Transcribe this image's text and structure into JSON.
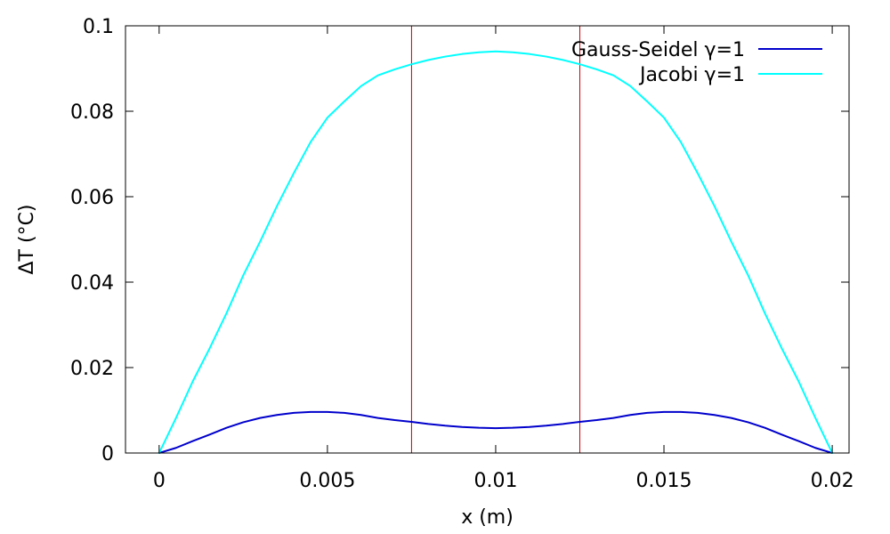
{
  "chart_data": {
    "type": "line",
    "xlabel": "x (m)",
    "ylabel": "ΔT (°C)",
    "xlim": [
      -0.001,
      0.0205
    ],
    "ylim": [
      0,
      0.1
    ],
    "x_ticks": [
      0,
      0.005,
      0.01,
      0.015,
      0.02
    ],
    "x_tick_labels": [
      "0",
      "0.005",
      "0.01",
      "0.015",
      "0.02"
    ],
    "y_ticks": [
      0,
      0.02,
      0.04,
      0.06,
      0.08,
      0.1
    ],
    "y_tick_labels": [
      "0",
      "0.02",
      "0.04",
      "0.06",
      "0.08",
      "0.1"
    ],
    "grid": false,
    "legend_position": "top-right",
    "vertical_lines": [
      {
        "x": 0.0075,
        "color": "#cc0000"
      },
      {
        "x": 0.0125,
        "color": "#cc0000"
      }
    ],
    "series": [
      {
        "name": "Gauss-Seidel γ=1",
        "color": "#0000cc",
        "points": [
          [
            0.0,
            0.0
          ],
          [
            0.0005,
            0.0012
          ],
          [
            0.001,
            0.0028
          ],
          [
            0.0015,
            0.0043
          ],
          [
            0.002,
            0.0059
          ],
          [
            0.0025,
            0.0072
          ],
          [
            0.003,
            0.0082
          ],
          [
            0.0035,
            0.0089
          ],
          [
            0.004,
            0.0094
          ],
          [
            0.0045,
            0.0096
          ],
          [
            0.005,
            0.0096
          ],
          [
            0.0055,
            0.0094
          ],
          [
            0.006,
            0.0089
          ],
          [
            0.0065,
            0.0082
          ],
          [
            0.007,
            0.0077
          ],
          [
            0.0075,
            0.0073
          ],
          [
            0.008,
            0.0068
          ],
          [
            0.0085,
            0.0064
          ],
          [
            0.009,
            0.0061
          ],
          [
            0.0095,
            0.0059
          ],
          [
            0.01,
            0.0058
          ],
          [
            0.0105,
            0.0059
          ],
          [
            0.011,
            0.0061
          ],
          [
            0.0115,
            0.0064
          ],
          [
            0.012,
            0.0068
          ],
          [
            0.0125,
            0.0073
          ],
          [
            0.013,
            0.0077
          ],
          [
            0.0135,
            0.0082
          ],
          [
            0.014,
            0.0089
          ],
          [
            0.0145,
            0.0094
          ],
          [
            0.015,
            0.0096
          ],
          [
            0.0155,
            0.0096
          ],
          [
            0.016,
            0.0094
          ],
          [
            0.0165,
            0.0089
          ],
          [
            0.017,
            0.0082
          ],
          [
            0.0175,
            0.0072
          ],
          [
            0.018,
            0.0059
          ],
          [
            0.0185,
            0.0043
          ],
          [
            0.019,
            0.0028
          ],
          [
            0.0195,
            0.0012
          ],
          [
            0.02,
            0.0
          ]
        ]
      },
      {
        "name": "Jacobi γ=1",
        "color": "#00ffff",
        "points": [
          [
            0.0,
            0.0
          ],
          [
            0.0005,
            0.0082
          ],
          [
            0.001,
            0.0168
          ],
          [
            0.0015,
            0.0245
          ],
          [
            0.002,
            0.0327
          ],
          [
            0.0025,
            0.0416
          ],
          [
            0.003,
            0.0495
          ],
          [
            0.0035,
            0.0578
          ],
          [
            0.004,
            0.0655
          ],
          [
            0.0045,
            0.0728
          ],
          [
            0.005,
            0.0785
          ],
          [
            0.0055,
            0.0823
          ],
          [
            0.006,
            0.0859
          ],
          [
            0.0065,
            0.0884
          ],
          [
            0.007,
            0.0898
          ],
          [
            0.0075,
            0.091
          ],
          [
            0.008,
            0.092
          ],
          [
            0.0085,
            0.0928
          ],
          [
            0.009,
            0.0934
          ],
          [
            0.0095,
            0.0938
          ],
          [
            0.01,
            0.094
          ],
          [
            0.0105,
            0.0938
          ],
          [
            0.011,
            0.0934
          ],
          [
            0.0115,
            0.0928
          ],
          [
            0.012,
            0.092
          ],
          [
            0.0125,
            0.091
          ],
          [
            0.013,
            0.0898
          ],
          [
            0.0135,
            0.0884
          ],
          [
            0.014,
            0.0859
          ],
          [
            0.0145,
            0.0823
          ],
          [
            0.015,
            0.0785
          ],
          [
            0.0155,
            0.0728
          ],
          [
            0.016,
            0.0655
          ],
          [
            0.0165,
            0.0578
          ],
          [
            0.017,
            0.0495
          ],
          [
            0.0175,
            0.0416
          ],
          [
            0.018,
            0.0327
          ],
          [
            0.0185,
            0.0245
          ],
          [
            0.019,
            0.0168
          ],
          [
            0.0195,
            0.0082
          ],
          [
            0.02,
            0.0
          ]
        ]
      }
    ]
  }
}
